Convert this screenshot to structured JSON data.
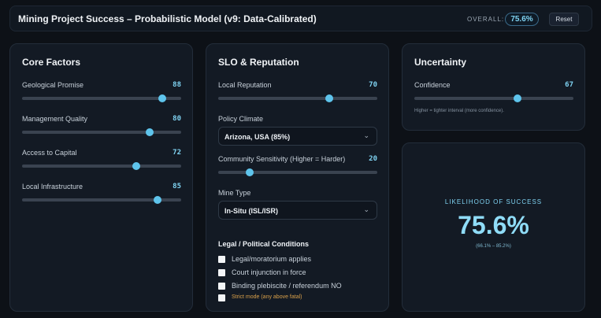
{
  "header": {
    "title": "Mining Project Success – Probabilistic Model (v9: Data-Calibrated)",
    "overall_label": "OVERALL:",
    "overall_value": "75.6%",
    "reset_label": "Reset"
  },
  "core": {
    "title": "Core Factors",
    "sliders": [
      {
        "label": "Geological Promise",
        "value": "88",
        "pct": 88
      },
      {
        "label": "Management Quality",
        "value": "80",
        "pct": 80
      },
      {
        "label": "Access to Capital",
        "value": "72",
        "pct": 72
      },
      {
        "label": "Local Infrastructure",
        "value": "85",
        "pct": 85
      }
    ]
  },
  "slo": {
    "title": "SLO & Reputation",
    "reputation": {
      "label": "Local Reputation",
      "value": "70",
      "pct": 70
    },
    "policy": {
      "label": "Policy Climate",
      "selected": "Arizona, USA (85%)"
    },
    "sensitivity": {
      "label": "Community Sensitivity (Higher = Harder)",
      "value": "20",
      "pct": 20
    },
    "mine_type": {
      "label": "Mine Type",
      "selected": "In-Situ (ISL/ISR)"
    },
    "legal": {
      "title": "Legal / Political Conditions",
      "options": [
        "Legal/moratorium applies",
        "Court injunction in force",
        "Binding plebiscite / referendum NO"
      ],
      "strict": "Strict mode (any above fatal)"
    }
  },
  "uncertainty": {
    "title": "Uncertainty",
    "confidence": {
      "label": "Confidence",
      "value": "67",
      "pct": 65
    },
    "hint": "Higher = tighter interval (more confidence)."
  },
  "result": {
    "label": "LIKELIHOOD OF SUCCESS",
    "value": "75.6%",
    "range": "(66.1% – 85.2%)"
  },
  "icons": {
    "chevron": "chevron-down-icon"
  }
}
